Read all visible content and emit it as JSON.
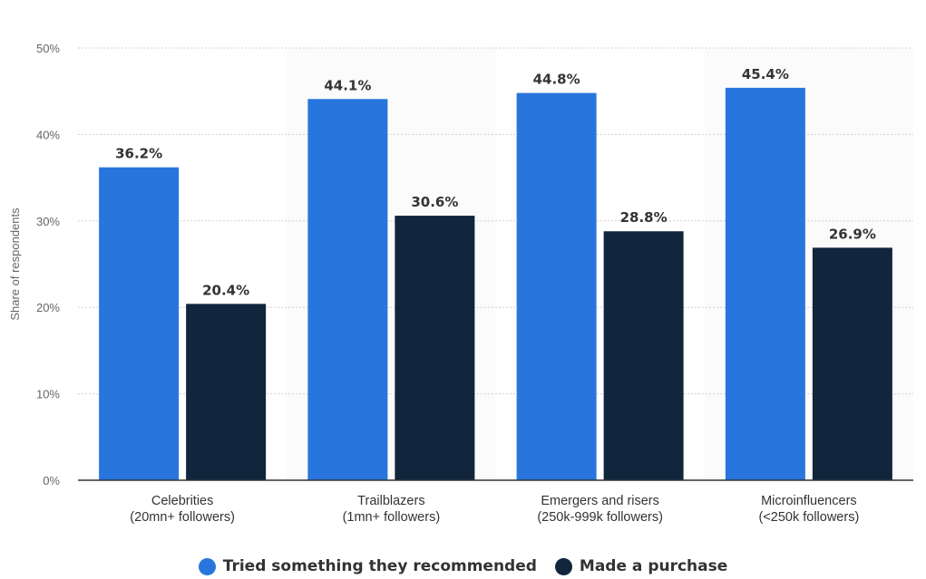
{
  "chart_data": {
    "type": "bar",
    "categories": [
      [
        "Celebrities",
        "(20mn+ followers)"
      ],
      [
        "Trailblazers",
        "(1mn+ followers)"
      ],
      [
        "Emergers and risers",
        "(250k-999k followers)"
      ],
      [
        "Microinfluencers",
        "(<250k followers)"
      ]
    ],
    "series": [
      {
        "name": "Tried something they recommended",
        "color": "#2876dd",
        "values": [
          36.2,
          44.1,
          44.8,
          45.4
        ],
        "labels": [
          "36.2%",
          "44.1%",
          "44.8%",
          "45.4%"
        ]
      },
      {
        "name": "Made a purchase",
        "color": "#11253d",
        "values": [
          20.4,
          30.6,
          28.8,
          26.9
        ],
        "labels": [
          "20.4%",
          "30.6%",
          "28.8%",
          "26.9%"
        ]
      }
    ],
    "ylabel": "Share of respondents",
    "ylim": [
      0,
      50
    ],
    "yticks": [
      0,
      10,
      20,
      30,
      40,
      50
    ],
    "ytick_labels": [
      "0%",
      "10%",
      "20%",
      "30%",
      "40%",
      "50%"
    ],
    "grid": true,
    "legend_position": "bottom"
  }
}
